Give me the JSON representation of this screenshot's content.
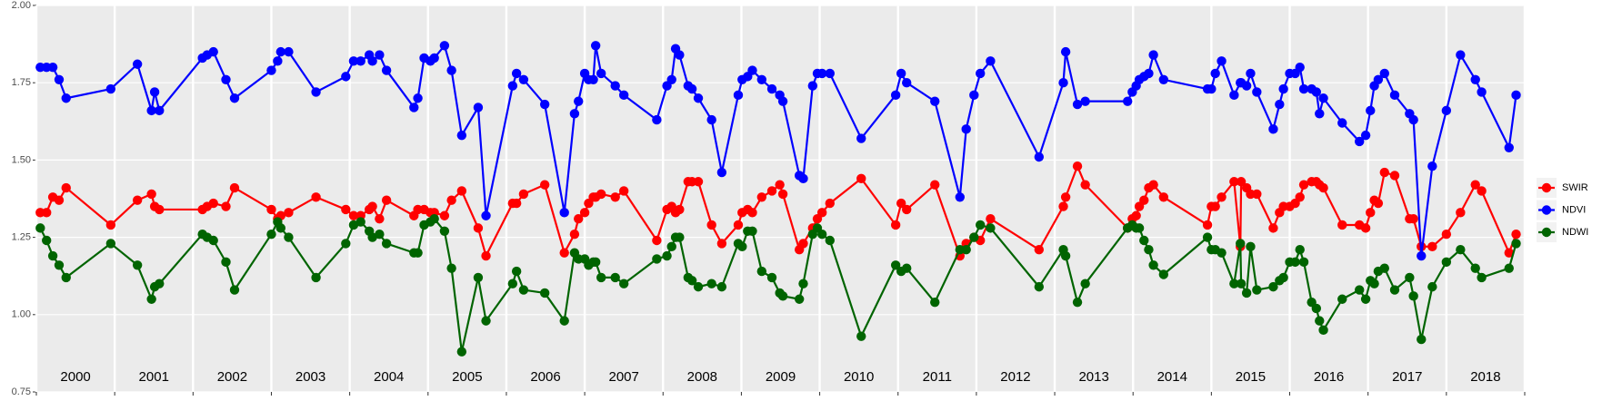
{
  "chart_data": {
    "type": "line",
    "x": [
      2000.05,
      2000.13,
      2000.21,
      2000.29,
      2000.38,
      2000.95,
      2001.29,
      2001.47,
      2001.51,
      2001.57,
      2002.12,
      2002.18,
      2002.26,
      2002.42,
      2002.53,
      2003.0,
      2003.08,
      2003.12,
      2003.22,
      2003.57,
      2003.95,
      2004.05,
      2004.14,
      2004.25,
      2004.29,
      2004.38,
      2004.47,
      2004.82,
      2004.87,
      2004.95,
      2005.03,
      2005.08,
      2005.21,
      2005.3,
      2005.43,
      2005.64,
      2005.74,
      2006.08,
      2006.13,
      2006.22,
      2006.49,
      2006.74,
      2006.87,
      2006.92,
      2007.0,
      2007.05,
      2007.11,
      2007.14,
      2007.21,
      2007.39,
      2007.5,
      2007.92,
      2008.05,
      2008.11,
      2008.16,
      2008.21,
      2008.32,
      2008.37,
      2008.45,
      2008.62,
      2008.75,
      2008.96,
      2009.01,
      2009.08,
      2009.14,
      2009.26,
      2009.39,
      2009.49,
      2009.53,
      2009.74,
      2009.79,
      2009.91,
      2009.97,
      2010.03,
      2010.13,
      2010.53,
      2010.97,
      2011.04,
      2011.11,
      2011.47,
      2011.79,
      2011.87,
      2011.97,
      2012.05,
      2012.18,
      2012.8,
      2013.11,
      2013.14,
      2013.29,
      2013.39,
      2013.93,
      2013.99,
      2014.04,
      2014.08,
      2014.14,
      2014.2,
      2014.26,
      2014.39,
      2014.95,
      2015.0,
      2015.05,
      2015.13,
      2015.29,
      2015.37,
      2015.38,
      2015.45,
      2015.5,
      2015.58,
      2015.79,
      2015.87,
      2015.92,
      2016.0,
      2016.07,
      2016.13,
      2016.18,
      2016.28,
      2016.34,
      2016.38,
      2016.43,
      2016.67,
      2016.89,
      2016.97,
      2017.03,
      2017.08,
      2017.13,
      2017.21,
      2017.34,
      2017.53,
      2017.58,
      2017.68,
      2017.82,
      2018.0,
      2018.18,
      2018.37,
      2018.45,
      2018.8,
      2018.89
    ],
    "series": [
      {
        "name": "SWIR",
        "color": "#ff0000",
        "values": [
          1.33,
          1.33,
          1.38,
          1.37,
          1.41,
          1.29,
          1.37,
          1.39,
          1.35,
          1.34,
          1.34,
          1.35,
          1.36,
          1.35,
          1.41,
          1.34,
          1.31,
          1.32,
          1.33,
          1.38,
          1.34,
          1.32,
          1.32,
          1.34,
          1.35,
          1.31,
          1.37,
          1.32,
          1.34,
          1.34,
          1.33,
          1.33,
          1.32,
          1.37,
          1.4,
          1.28,
          1.19,
          1.36,
          1.36,
          1.39,
          1.42,
          1.2,
          1.26,
          1.31,
          1.33,
          1.36,
          1.38,
          1.38,
          1.39,
          1.38,
          1.4,
          1.24,
          1.34,
          1.35,
          1.33,
          1.34,
          1.43,
          1.43,
          1.43,
          1.29,
          1.23,
          1.29,
          1.33,
          1.34,
          1.33,
          1.38,
          1.4,
          1.42,
          1.39,
          1.21,
          1.23,
          1.28,
          1.31,
          1.33,
          1.36,
          1.44,
          1.29,
          1.36,
          1.34,
          1.42,
          1.19,
          1.23,
          1.25,
          1.24,
          1.31,
          1.21,
          1.35,
          1.38,
          1.48,
          1.42,
          1.28,
          1.31,
          1.32,
          1.35,
          1.37,
          1.41,
          1.42,
          1.38,
          1.29,
          1.35,
          1.35,
          1.38,
          1.43,
          1.22,
          1.43,
          1.41,
          1.39,
          1.39,
          1.28,
          1.33,
          1.35,
          1.35,
          1.36,
          1.38,
          1.42,
          1.43,
          1.43,
          1.42,
          1.41,
          1.29,
          1.29,
          1.28,
          1.33,
          1.37,
          1.36,
          1.46,
          1.45,
          1.31,
          1.31,
          1.22,
          1.22,
          1.26,
          1.33,
          1.42,
          1.4,
          1.2,
          1.26
        ]
      },
      {
        "name": "NDVI",
        "color": "#0000ff",
        "values": [
          1.8,
          1.8,
          1.8,
          1.76,
          1.7,
          1.73,
          1.81,
          1.66,
          1.72,
          1.66,
          1.83,
          1.84,
          1.85,
          1.76,
          1.7,
          1.79,
          1.82,
          1.85,
          1.85,
          1.72,
          1.77,
          1.82,
          1.82,
          1.84,
          1.82,
          1.84,
          1.79,
          1.67,
          1.7,
          1.83,
          1.82,
          1.83,
          1.87,
          1.79,
          1.58,
          1.67,
          1.32,
          1.74,
          1.78,
          1.76,
          1.68,
          1.33,
          1.65,
          1.69,
          1.78,
          1.76,
          1.76,
          1.87,
          1.78,
          1.74,
          1.71,
          1.63,
          1.74,
          1.76,
          1.86,
          1.84,
          1.74,
          1.73,
          1.7,
          1.63,
          1.46,
          1.71,
          1.76,
          1.77,
          1.79,
          1.76,
          1.73,
          1.71,
          1.69,
          1.45,
          1.44,
          1.74,
          1.78,
          1.78,
          1.78,
          1.57,
          1.71,
          1.78,
          1.75,
          1.69,
          1.38,
          1.6,
          1.71,
          1.78,
          1.82,
          1.51,
          1.75,
          1.85,
          1.68,
          1.69,
          1.69,
          1.72,
          1.74,
          1.76,
          1.77,
          1.78,
          1.84,
          1.76,
          1.73,
          1.73,
          1.78,
          1.82,
          1.71,
          1.75,
          1.75,
          1.74,
          1.78,
          1.72,
          1.6,
          1.68,
          1.73,
          1.78,
          1.78,
          1.8,
          1.73,
          1.73,
          1.72,
          1.65,
          1.7,
          1.62,
          1.56,
          1.58,
          1.66,
          1.74,
          1.76,
          1.78,
          1.71,
          1.65,
          1.63,
          1.19,
          1.48,
          1.66,
          1.84,
          1.76,
          1.72,
          1.54,
          1.71
        ]
      },
      {
        "name": "NDWI",
        "color": "#006400",
        "values": [
          1.28,
          1.24,
          1.19,
          1.16,
          1.12,
          1.23,
          1.16,
          1.05,
          1.09,
          1.1,
          1.26,
          1.25,
          1.24,
          1.17,
          1.08,
          1.26,
          1.3,
          1.28,
          1.25,
          1.12,
          1.23,
          1.29,
          1.3,
          1.27,
          1.25,
          1.26,
          1.23,
          1.2,
          1.2,
          1.29,
          1.3,
          1.31,
          1.27,
          1.15,
          0.88,
          1.12,
          0.98,
          1.1,
          1.14,
          1.08,
          1.07,
          0.98,
          1.2,
          1.18,
          1.18,
          1.16,
          1.17,
          1.17,
          1.12,
          1.12,
          1.1,
          1.18,
          1.19,
          1.22,
          1.25,
          1.25,
          1.12,
          1.11,
          1.09,
          1.1,
          1.09,
          1.23,
          1.22,
          1.27,
          1.27,
          1.14,
          1.12,
          1.07,
          1.06,
          1.05,
          1.1,
          1.26,
          1.28,
          1.26,
          1.24,
          0.93,
          1.16,
          1.14,
          1.15,
          1.04,
          1.21,
          1.21,
          1.25,
          1.29,
          1.28,
          1.09,
          1.21,
          1.19,
          1.04,
          1.1,
          1.28,
          1.29,
          1.28,
          1.28,
          1.24,
          1.21,
          1.16,
          1.13,
          1.25,
          1.21,
          1.21,
          1.2,
          1.1,
          1.23,
          1.1,
          1.07,
          1.22,
          1.08,
          1.09,
          1.11,
          1.12,
          1.17,
          1.17,
          1.21,
          1.17,
          1.04,
          1.02,
          0.98,
          0.95,
          1.05,
          1.08,
          1.05,
          1.11,
          1.1,
          1.14,
          1.15,
          1.08,
          1.12,
          1.06,
          0.92,
          1.09,
          1.17,
          1.21,
          1.15,
          1.12,
          1.15,
          1.23
        ]
      }
    ],
    "xlim": [
      2000,
      2019
    ],
    "xticks": [
      2000,
      2001,
      2002,
      2003,
      2004,
      2005,
      2006,
      2007,
      2008,
      2009,
      2010,
      2011,
      2012,
      2013,
      2014,
      2015,
      2016,
      2017,
      2018,
      2019
    ],
    "year_labels": [
      "2000",
      "2001",
      "2002",
      "2003",
      "2004",
      "2005",
      "2006",
      "2007",
      "2008",
      "2009",
      "2010",
      "2011",
      "2012",
      "2013",
      "2014",
      "2015",
      "2016",
      "2017",
      "2018"
    ],
    "ylim": [
      0.75,
      2.0
    ],
    "yticks": [
      {
        "value": 0.75,
        "label": "0.75"
      },
      {
        "value": 1,
        "label": "1.00"
      },
      {
        "value": 1.25,
        "label": "1.25"
      },
      {
        "value": 1.5,
        "label": "1.50"
      },
      {
        "value": 1.75,
        "label": "1.75"
      },
      {
        "value": 2,
        "label": "2.00"
      }
    ],
    "grid": true,
    "legend": "right"
  }
}
